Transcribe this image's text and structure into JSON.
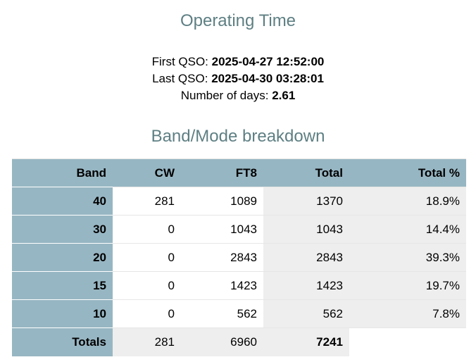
{
  "header": {
    "title": "Operating Time"
  },
  "info": [
    {
      "label": "First QSO:",
      "value": "2025-04-27 12:52:00"
    },
    {
      "label": "Last QSO:",
      "value": "2025-04-30 03:28:01"
    },
    {
      "label": "Number of days:",
      "value": "2.61"
    }
  ],
  "breakdown": {
    "title": "Band/Mode breakdown",
    "columns": [
      "Band",
      "CW",
      "FT8",
      "Total",
      "Total %"
    ],
    "rows": [
      [
        40,
        281,
        1089,
        1370,
        "18.9%"
      ],
      [
        30,
        0,
        1043,
        1043,
        "14.4%"
      ],
      [
        20,
        0,
        2843,
        2843,
        "39.3%"
      ],
      [
        15,
        0,
        1423,
        1423,
        "19.7%"
      ],
      [
        10,
        0,
        562,
        562,
        "7.8%"
      ]
    ],
    "totals": [
      "Totals",
      281,
      6960,
      7241
    ]
  }
}
